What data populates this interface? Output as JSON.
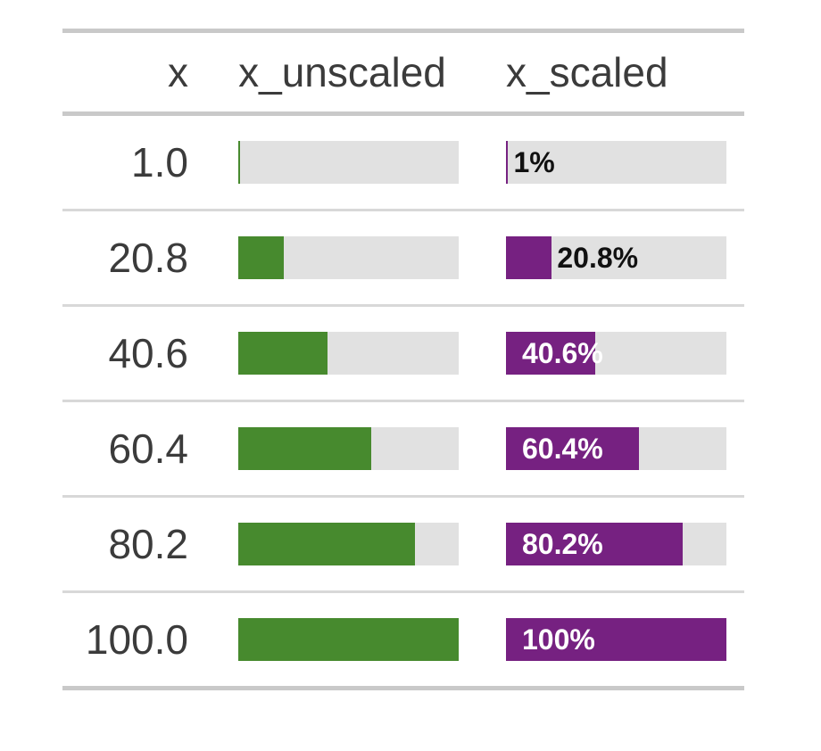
{
  "table": {
    "columns": [
      {
        "key": "x",
        "label": "x"
      },
      {
        "key": "x_unscaled",
        "label": "x_unscaled"
      },
      {
        "key": "x_scaled",
        "label": "x_scaled"
      }
    ],
    "rows": [
      {
        "x": "1.0",
        "pct": 1,
        "bar_label": "1%",
        "label_pos": "outside"
      },
      {
        "x": "20.8",
        "pct": 20.8,
        "bar_label": "20.8%",
        "label_pos": "outside"
      },
      {
        "x": "40.6",
        "pct": 40.6,
        "bar_label": "40.6%",
        "label_pos": "inside"
      },
      {
        "x": "60.4",
        "pct": 60.4,
        "bar_label": "60.4%",
        "label_pos": "inside"
      },
      {
        "x": "80.2",
        "pct": 80.2,
        "bar_label": "80.2%",
        "label_pos": "inside"
      },
      {
        "x": "100.0",
        "pct": 100,
        "bar_label": "100%",
        "label_pos": "inside"
      }
    ]
  },
  "colors": {
    "green": "#478a2e",
    "purple": "#762181",
    "track": "#e1e1e1",
    "rule-heavy": "#c9c9c9",
    "rule-light": "#d8d8d8",
    "text": "#3b3b3b",
    "label-dark": "#111111",
    "label-light": "#ffffff"
  },
  "chart_data": {
    "type": "table",
    "title": "",
    "columns": [
      "x",
      "x_unscaled",
      "x_scaled"
    ],
    "x_values": [
      1.0,
      20.8,
      40.6,
      60.4,
      80.2,
      100.0
    ],
    "series": [
      {
        "name": "x_unscaled",
        "type": "bar",
        "values": [
          1.0,
          20.8,
          40.6,
          60.4,
          80.2,
          100.0
        ],
        "range": [
          0,
          100
        ],
        "color": "#478a2e",
        "labels": []
      },
      {
        "name": "x_scaled",
        "type": "bar",
        "values": [
          1.0,
          20.8,
          40.6,
          60.4,
          80.2,
          100.0
        ],
        "range": [
          0,
          100
        ],
        "color": "#762181",
        "labels": [
          "1%",
          "20.8%",
          "40.6%",
          "60.4%",
          "80.2%",
          "100%"
        ]
      }
    ],
    "legend_position": "none",
    "grid": false
  }
}
